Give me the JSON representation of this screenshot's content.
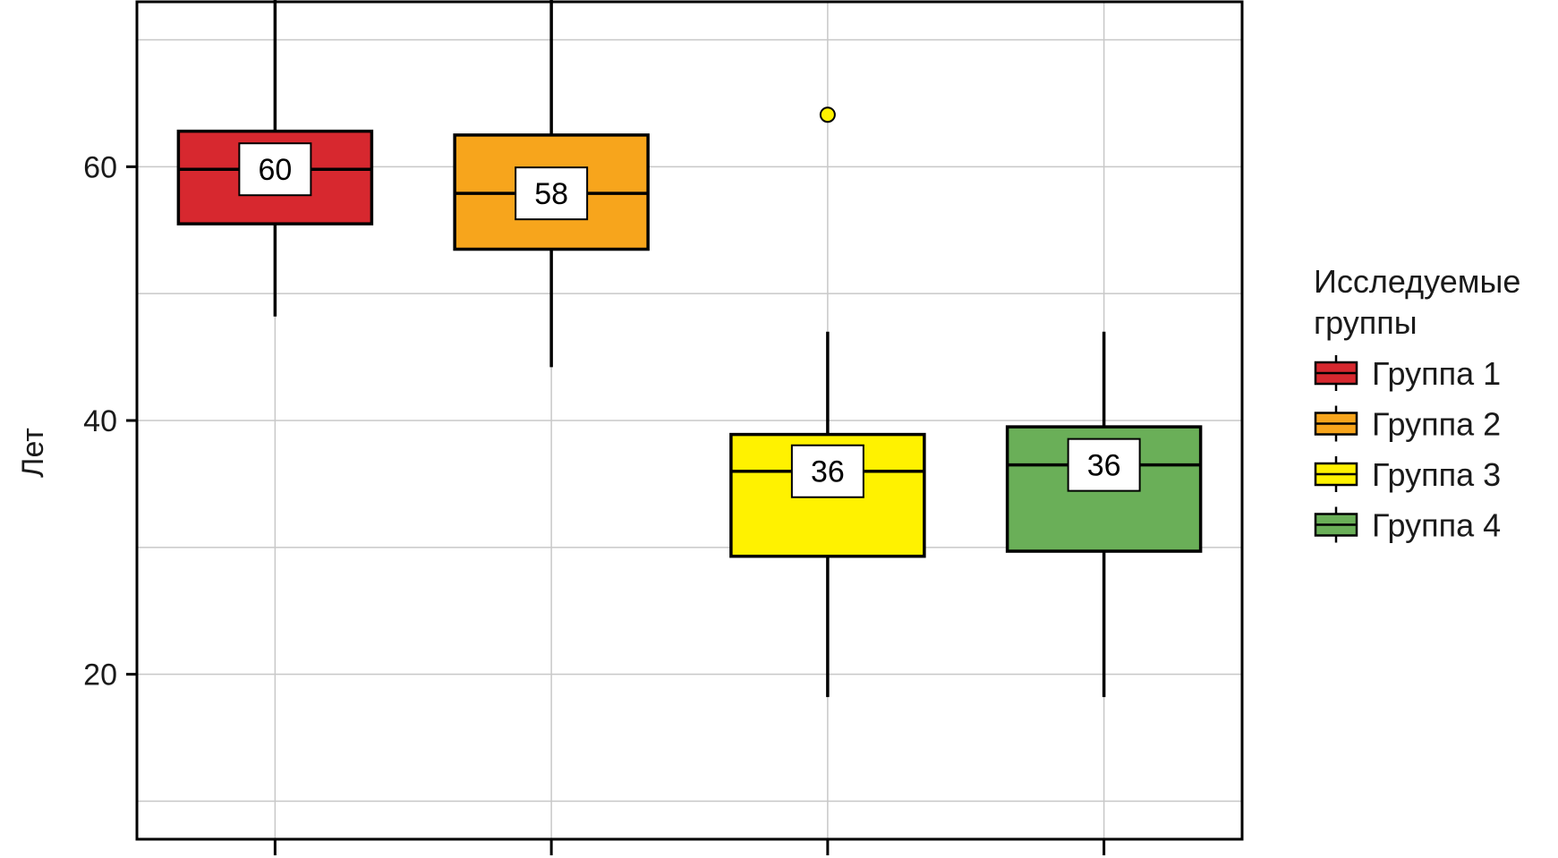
{
  "chart_data": {
    "type": "box",
    "ylabel": "Лет",
    "ylim": [
      7,
      73
    ],
    "yticks": [
      20,
      40,
      60
    ],
    "grid": true,
    "legend_position": "right",
    "legend_title": "Исследуемые группы",
    "legend_title_lines": [
      "Исследуемые",
      "группы"
    ],
    "groups": [
      {
        "name": "Группа 1",
        "color": "#d7282f",
        "whisker_low": 48.2,
        "q1": 55.5,
        "median": 59.8,
        "q3": 62.8,
        "whisker_high": 74.0,
        "median_label": "60",
        "outliers": []
      },
      {
        "name": "Группа 2",
        "color": "#f7a51c",
        "whisker_low": 44.2,
        "q1": 53.5,
        "median": 57.9,
        "q3": 62.5,
        "whisker_high": 74.0,
        "median_label": "58",
        "outliers": []
      },
      {
        "name": "Группа 3",
        "color": "#fff200",
        "whisker_low": 18.2,
        "q1": 29.3,
        "median": 36.0,
        "q3": 38.9,
        "whisker_high": 47.0,
        "median_label": "36",
        "outliers": [
          64.1
        ]
      },
      {
        "name": "Группа 4",
        "color": "#6aaf58",
        "whisker_low": 18.2,
        "q1": 29.7,
        "median": 36.5,
        "q3": 39.5,
        "whisker_high": 47.0,
        "median_label": "36",
        "outliers": []
      }
    ]
  }
}
